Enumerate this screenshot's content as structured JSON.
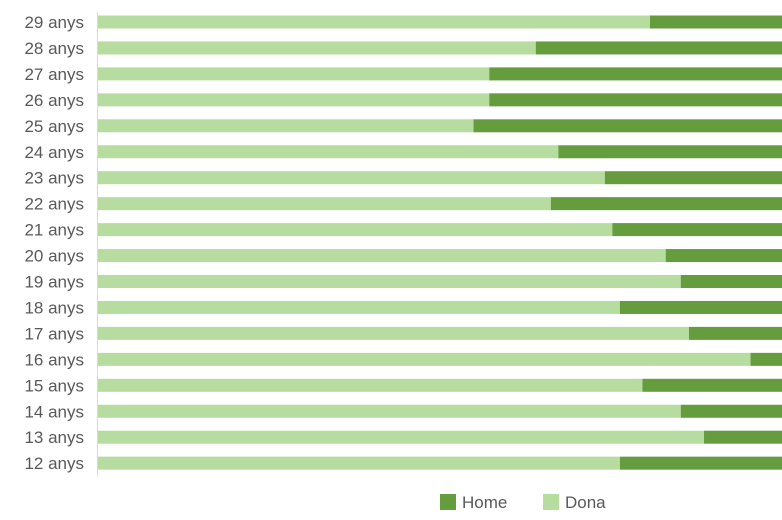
{
  "chart_data": {
    "type": "bar",
    "orientation": "horizontal",
    "stacked": "percent",
    "title": "",
    "xlabel": "",
    "ylabel": "",
    "xlim": [
      0,
      100
    ],
    "grid": false,
    "legend": {
      "position": "bottom",
      "order": [
        "Home",
        "Dona"
      ]
    },
    "categories": [
      "29 anys",
      "28 anys",
      "27 anys",
      "26 anys",
      "25 anys",
      "24 anys",
      "23 anys",
      "22 anys",
      "21 anys",
      "20 anys",
      "19 anys",
      "18 anys",
      "17 anys",
      "16 anys",
      "15 anys",
      "14 anys",
      "13 anys",
      "12 anys"
    ],
    "series": [
      {
        "name": "Dona",
        "color": "#b7dca0",
        "values": [
          80.7,
          64.0,
          57.2,
          57.2,
          54.9,
          67.3,
          74.1,
          66.2,
          75.2,
          83.0,
          85.2,
          76.3,
          86.4,
          95.4,
          79.6,
          85.2,
          88.6,
          76.3
        ]
      },
      {
        "name": "Home",
        "color": "#649c3e",
        "values": [
          19.3,
          36.0,
          42.8,
          42.8,
          45.1,
          32.7,
          25.9,
          33.8,
          24.8,
          17.0,
          14.8,
          23.7,
          13.6,
          4.6,
          20.4,
          14.8,
          11.4,
          23.7
        ]
      }
    ]
  }
}
